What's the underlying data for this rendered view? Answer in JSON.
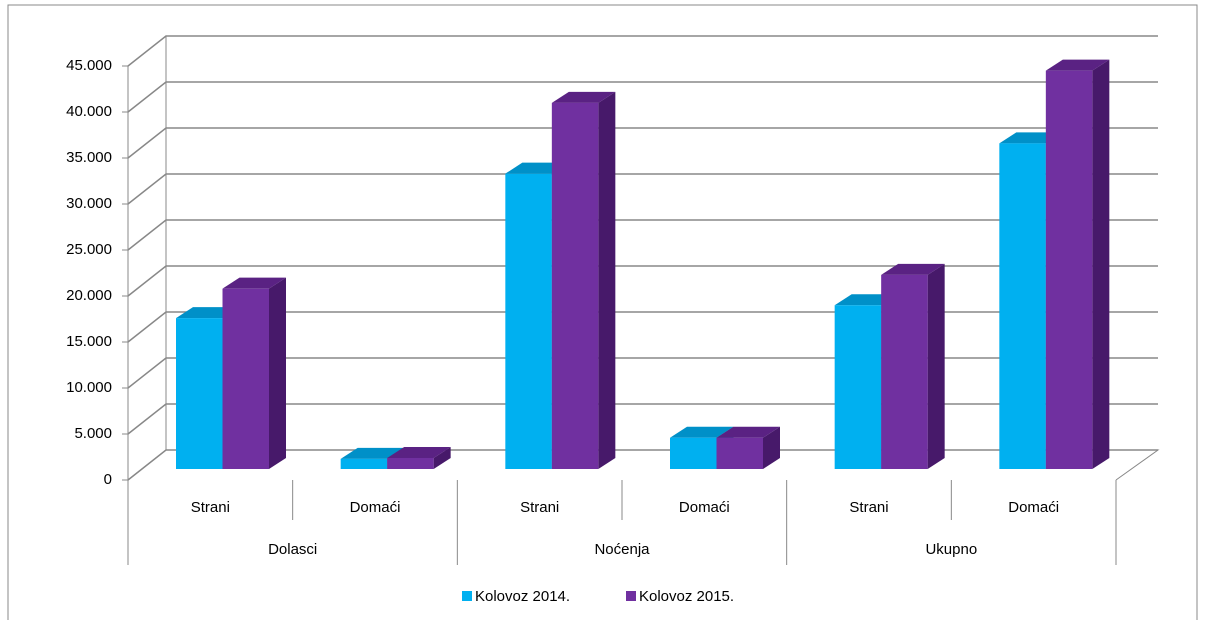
{
  "chart_data": {
    "type": "bar3d",
    "categories": [
      "Strani",
      "Domaći",
      "Strani",
      "Domaći",
      "Strani",
      "Domaći"
    ],
    "groups": [
      "Dolasci",
      "Noćenja",
      "Ukupno"
    ],
    "series": [
      {
        "name": "Kolovoz 2014.",
        "color": "#00b0f0",
        "values": [
          16400,
          1100,
          32100,
          3400,
          17800,
          35400
        ]
      },
      {
        "name": "Kolovoz 2015.",
        "color": "#7030a0",
        "values": [
          19600,
          1200,
          39800,
          3400,
          21100,
          43300
        ]
      }
    ],
    "ylim": [
      0,
      45000
    ],
    "yticks": [
      0,
      {
        "value": 5000,
        "label": "5.000"
      },
      {
        "value": 10000,
        "label": "10.000"
      },
      {
        "value": 15000,
        "label": "15.000"
      },
      {
        "value": 20000,
        "label": "20.000"
      },
      {
        "value": 25000,
        "label": "25.000"
      },
      {
        "value": 30000,
        "label": "30.000"
      },
      {
        "value": 35000,
        "label": "35.000"
      },
      {
        "value": 40000,
        "label": "40.000"
      },
      {
        "value": 45000,
        "label": "45.000"
      }
    ],
    "grid": true,
    "legend": "bottom"
  }
}
